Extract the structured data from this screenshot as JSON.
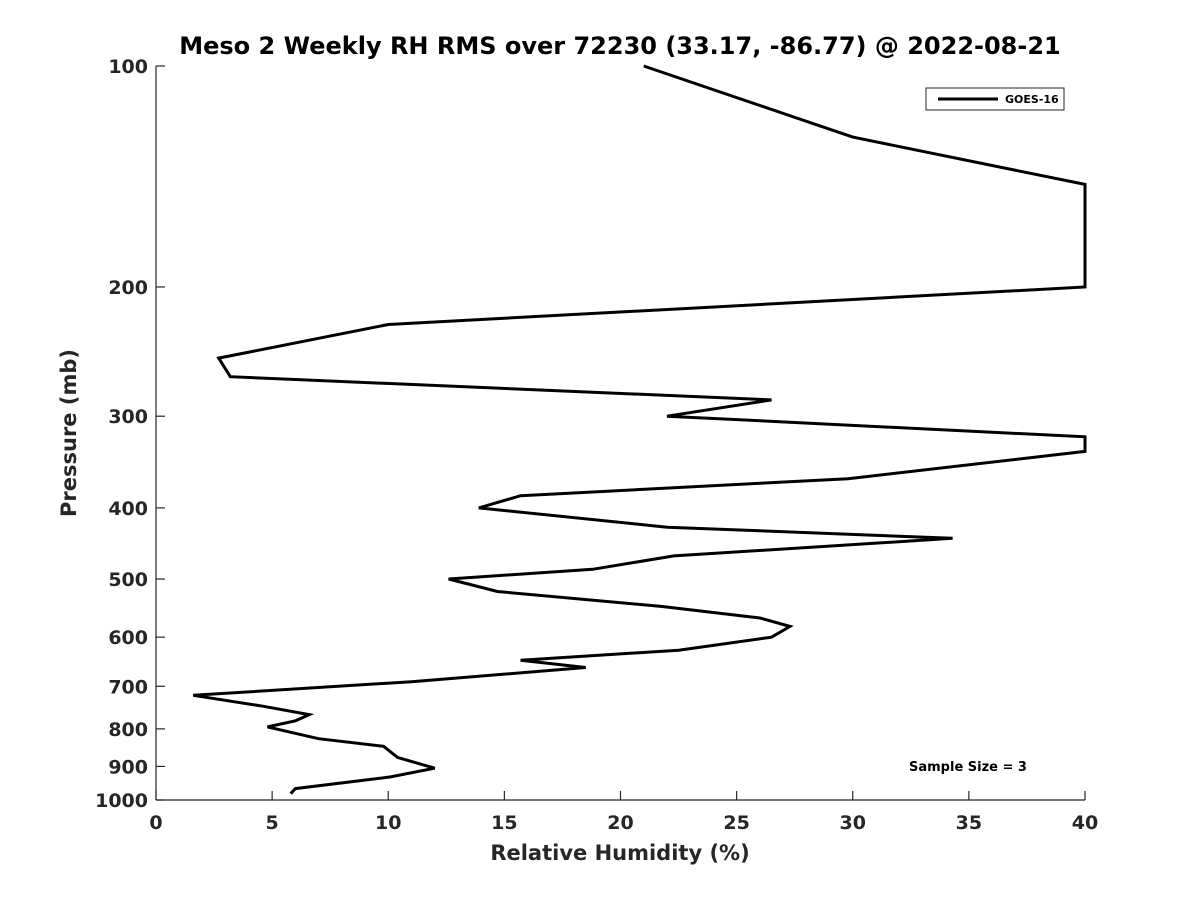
{
  "chart_data": {
    "type": "line",
    "title": "Meso 2 Weekly RH RMS over 72230 (33.17, -86.77) @ 2022-08-21",
    "xlabel": "Relative Humidity (%)",
    "ylabel": "Pressure (mb)",
    "xlim": [
      0,
      40
    ],
    "ylim": [
      100,
      1000
    ],
    "yscale": "log",
    "y_reversed": true,
    "grid": false,
    "xticks": [
      "0",
      "5",
      "10",
      "15",
      "20",
      "25",
      "30",
      "35",
      "40"
    ],
    "yticks": [
      "100",
      "200",
      "300",
      "400",
      "500",
      "600",
      "700",
      "800",
      "900",
      "1000"
    ],
    "legend": {
      "position": "top-right",
      "entries": [
        "GOES-16"
      ]
    },
    "annotation": "Sample Size = 3",
    "series": [
      {
        "name": "GOES-16",
        "color": "#000000",
        "points": [
          [
            21.0,
            100
          ],
          [
            30.0,
            125
          ],
          [
            40.0,
            145
          ],
          [
            40.0,
            200
          ],
          [
            10.0,
            225
          ],
          [
            2.7,
            250
          ],
          [
            3.2,
            265
          ],
          [
            26.5,
            285
          ],
          [
            22.0,
            300
          ],
          [
            40.0,
            320
          ],
          [
            40.0,
            335
          ],
          [
            29.8,
            365
          ],
          [
            15.7,
            385
          ],
          [
            13.9,
            400
          ],
          [
            22.0,
            425
          ],
          [
            34.3,
            440
          ],
          [
            22.3,
            465
          ],
          [
            18.8,
            485
          ],
          [
            12.6,
            500
          ],
          [
            14.7,
            520
          ],
          [
            21.8,
            545
          ],
          [
            26.0,
            565
          ],
          [
            27.3,
            580
          ],
          [
            26.5,
            600
          ],
          [
            22.5,
            625
          ],
          [
            15.7,
            645
          ],
          [
            18.5,
            660
          ],
          [
            11.0,
            690
          ],
          [
            1.6,
            720
          ],
          [
            4.6,
            745
          ],
          [
            6.6,
            765
          ],
          [
            6.0,
            780
          ],
          [
            4.8,
            795
          ],
          [
            7.0,
            825
          ],
          [
            9.8,
            845
          ],
          [
            10.4,
            875
          ],
          [
            12.0,
            905
          ],
          [
            10.1,
            930
          ],
          [
            6.0,
            965
          ],
          [
            5.8,
            980
          ]
        ]
      }
    ]
  }
}
